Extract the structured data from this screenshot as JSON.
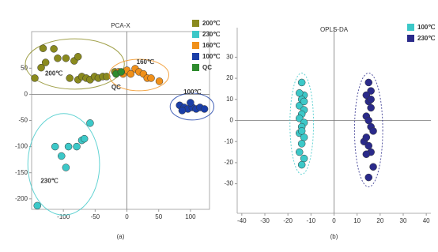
{
  "chart_data": [
    {
      "type": "scatter",
      "title": "PCA-X",
      "caption": "(a)",
      "xlim": [
        -150,
        130
      ],
      "ylim": [
        -220,
        120
      ],
      "xticks": [
        -100,
        -50,
        0,
        50,
        100
      ],
      "yticks": [
        -200,
        -150,
        -100,
        -50,
        0,
        50
      ],
      "ellipse_style": "solid",
      "series": [
        {
          "name": "200℃",
          "color": "#8a8a1e",
          "x": [
            -132,
            -115,
            -145,
            -135,
            -128,
            -109,
            -96,
            -83,
            -77,
            -90,
            -77,
            -71,
            -64,
            -58,
            -51,
            -45,
            -38,
            -32,
            -19
          ],
          "values": [
            88,
            87,
            31,
            51,
            61,
            69,
            69,
            64,
            72,
            31,
            28,
            34,
            31,
            28,
            34,
            31,
            34,
            34,
            43
          ]
        },
        {
          "name": "230℃",
          "color": "#3cc8c8",
          "x": [
            -113,
            -103,
            -96,
            -92,
            -79,
            -71,
            -67,
            -58,
            -141
          ],
          "values": [
            -100,
            -118,
            -140,
            -100,
            -100,
            -88,
            -85,
            -55,
            -213
          ]
        },
        {
          "name": "160℃",
          "color": "#f0901a",
          "x": [
            -13,
            -6,
            0,
            6,
            13,
            19,
            26,
            32,
            38,
            51
          ],
          "values": [
            43,
            39,
            46,
            39,
            49,
            43,
            39,
            31,
            31,
            25
          ]
        },
        {
          "name": "100℃",
          "color": "#1a3ea8",
          "x": [
            83,
            90,
            96,
            103,
            109,
            115,
            122,
            87,
            100
          ],
          "values": [
            -21,
            -25,
            -28,
            -25,
            -28,
            -25,
            -28,
            -31,
            -16
          ]
        },
        {
          "name": "QC",
          "color": "#2e8b2e",
          "x": [
            -17,
            -9
          ],
          "values": [
            39,
            43
          ]
        }
      ],
      "annotations": [
        {
          "text": "200℃",
          "x": -115,
          "y": 39,
          "color": "#8a8a1e"
        },
        {
          "text": "160℃",
          "x": 29,
          "y": 61,
          "color": "#f0901a"
        },
        {
          "text": "QC",
          "x": -17,
          "y": 13,
          "color": "#2e8b2e"
        },
        {
          "text": "100℃",
          "x": 103,
          "y": 4,
          "color": "#1a3ea8"
        },
        {
          "text": "230℃",
          "x": -122,
          "y": -166,
          "color": "#2a9a9a"
        }
      ]
    },
    {
      "type": "scatter",
      "title": "OPLS-DA",
      "caption": "(b)",
      "xlim": [
        -42,
        42
      ],
      "ylim": [
        -44,
        44
      ],
      "xticks": [
        -40,
        -30,
        -20,
        -10,
        0,
        10,
        20,
        30,
        40
      ],
      "yticks": [
        -30,
        -20,
        -10,
        0,
        10,
        20,
        30
      ],
      "ellipse_style": "dashed",
      "series": [
        {
          "name": "100℃",
          "color": "#3cc8c8",
          "x": [
            -14,
            -13,
            -14,
            -15,
            -13,
            -14,
            -15,
            -13,
            -14,
            -15,
            -13,
            -14,
            -15,
            -13,
            -14,
            -15,
            -13,
            -14
          ],
          "values": [
            18,
            12,
            10,
            7,
            5,
            3,
            1,
            -1,
            -3,
            -6,
            -8,
            -11,
            -15,
            -18,
            -21,
            13,
            9,
            -5
          ]
        },
        {
          "name": "230℃",
          "color": "#2a2a8a",
          "x": [
            15,
            16,
            14,
            15,
            16,
            14,
            15,
            16,
            13,
            15,
            17,
            16,
            14,
            17,
            15,
            16,
            14
          ],
          "values": [
            18,
            14,
            12,
            9,
            6,
            2,
            0,
            -3,
            -10,
            -12,
            -5,
            -15,
            -16,
            -22,
            -27,
            10,
            -8
          ]
        }
      ]
    }
  ]
}
